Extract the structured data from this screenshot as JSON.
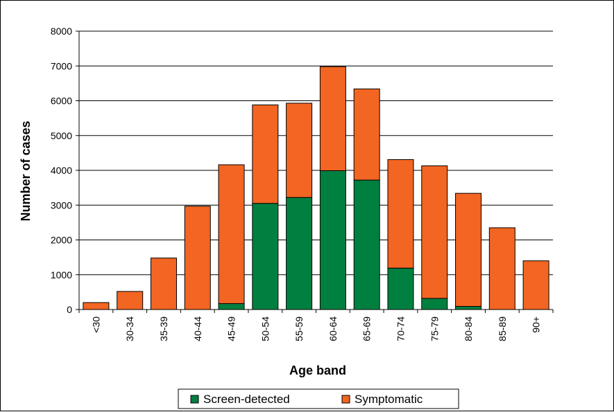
{
  "chart_data": {
    "type": "bar",
    "stacked": true,
    "title": "",
    "xlabel": "Age band",
    "ylabel": "Number of cases",
    "ylim": [
      0,
      8000
    ],
    "yticks": [
      0,
      1000,
      2000,
      3000,
      4000,
      5000,
      6000,
      7000,
      8000
    ],
    "grid": "horizontal",
    "legend_position": "bottom",
    "categories": [
      "<30",
      "30-34",
      "35-39",
      "40-44",
      "45-49",
      "50-54",
      "55-59",
      "60-64",
      "65-69",
      "70-74",
      "75-79",
      "80-84",
      "85-89",
      "90+"
    ],
    "series": [
      {
        "name": "Screen-detected",
        "color": "#008040",
        "values": [
          0,
          0,
          0,
          0,
          170,
          3050,
          3220,
          3990,
          3720,
          1190,
          320,
          90,
          0,
          0
        ]
      },
      {
        "name": "Symptomatic",
        "color": "#f26522",
        "values": [
          200,
          520,
          1480,
          2970,
          3990,
          2830,
          2710,
          2990,
          2620,
          3120,
          3810,
          3250,
          2350,
          1400
        ]
      }
    ]
  }
}
